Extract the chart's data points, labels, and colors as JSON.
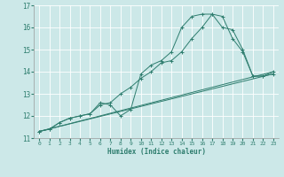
{
  "xlabel": "Humidex (Indice chaleur)",
  "ylabel": "",
  "bg_color": "#cce8e8",
  "grid_color": "#ffffff",
  "line_color": "#2e7d6e",
  "xlim": [
    -0.5,
    23.5
  ],
  "ylim": [
    11.0,
    17.0
  ],
  "yticks": [
    11,
    12,
    13,
    14,
    15,
    16,
    17
  ],
  "xticks": [
    0,
    1,
    2,
    3,
    4,
    5,
    6,
    7,
    8,
    9,
    10,
    11,
    12,
    13,
    14,
    15,
    16,
    17,
    18,
    19,
    20,
    21,
    22,
    23
  ],
  "series": [
    {
      "x": [
        0,
        1,
        2,
        3,
        4,
        5,
        6,
        7,
        8,
        9,
        10,
        11,
        12,
        13,
        14,
        15,
        16,
        17,
        18,
        19,
        20,
        21,
        22,
        23
      ],
      "y": [
        11.3,
        11.4,
        11.7,
        11.9,
        12.0,
        12.1,
        12.5,
        12.6,
        13.0,
        13.3,
        13.7,
        14.0,
        14.4,
        14.5,
        14.9,
        15.5,
        16.0,
        16.6,
        16.5,
        15.5,
        14.9,
        13.8,
        13.8,
        14.0
      ],
      "has_markers": true
    },
    {
      "x": [
        0,
        1,
        2,
        3,
        4,
        5,
        6,
        7,
        8,
        9,
        10,
        11,
        12,
        13,
        14,
        15,
        16,
        17,
        18,
        19,
        20,
        21,
        22,
        23
      ],
      "y": [
        11.3,
        11.4,
        11.7,
        11.9,
        12.0,
        12.1,
        12.6,
        12.5,
        12.0,
        12.3,
        13.9,
        14.3,
        14.5,
        14.9,
        16.0,
        16.5,
        16.6,
        16.6,
        16.0,
        15.9,
        15.0,
        13.8,
        13.8,
        13.9
      ],
      "has_markers": true
    },
    {
      "x": [
        0,
        23
      ],
      "y": [
        11.3,
        14.0
      ],
      "has_markers": false
    },
    {
      "x": [
        0,
        23
      ],
      "y": [
        11.3,
        13.9
      ],
      "has_markers": false
    }
  ]
}
